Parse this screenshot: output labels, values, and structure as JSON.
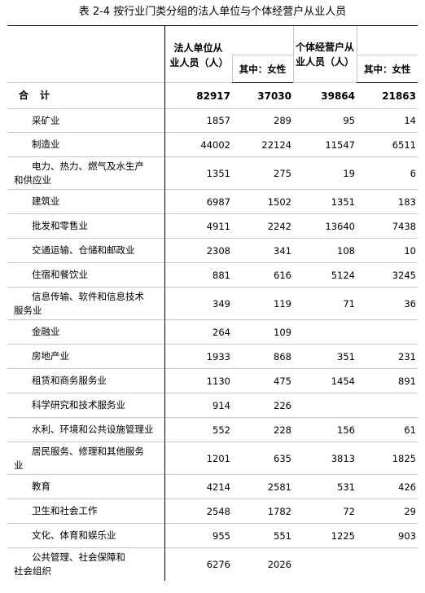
{
  "title": "表 2-4   按行业门类分组的法人单位与个体经营户从业人员",
  "headers": {
    "legal_unit": "法人单位从业人员（人）",
    "legal_female": "其中：女性",
    "individual": "个体经营户从业人员（人）",
    "individual_female": "其中：女性"
  },
  "total": {
    "label": "合计",
    "legal": "82917",
    "legal_female": "37030",
    "individual": "39864",
    "individual_female": "21863"
  },
  "rows": [
    {
      "label": "采矿业",
      "legal": "1857",
      "legal_female": "289",
      "individual": "95",
      "individual_female": "14"
    },
    {
      "label": "制造业",
      "legal": "44002",
      "legal_female": "22124",
      "individual": "11547",
      "individual_female": "6511"
    },
    {
      "label_a": "电力、热力、燃气及水生产",
      "label_b": "和供应业",
      "legal": "1351",
      "legal_female": "275",
      "individual": "19",
      "individual_female": "6"
    },
    {
      "label": "建筑业",
      "legal": "6987",
      "legal_female": "1502",
      "individual": "1351",
      "individual_female": "183"
    },
    {
      "label": "批发和零售业",
      "legal": "4911",
      "legal_female": "2242",
      "individual": "13640",
      "individual_female": "7438"
    },
    {
      "label": "交通运输、仓储和邮政业",
      "legal": "2308",
      "legal_female": "341",
      "individual": "108",
      "individual_female": "10"
    },
    {
      "label": "住宿和餐饮业",
      "legal": "881",
      "legal_female": "616",
      "individual": "5124",
      "individual_female": "3245"
    },
    {
      "label_a": "信息传输、软件和信息技术",
      "label_b": "服务业",
      "legal": "349",
      "legal_female": "119",
      "individual": "71",
      "individual_female": "36"
    },
    {
      "label": "金融业",
      "legal": "264",
      "legal_female": "109",
      "individual": "",
      "individual_female": ""
    },
    {
      "label": "房地产业",
      "legal": "1933",
      "legal_female": "868",
      "individual": "351",
      "individual_female": "231"
    },
    {
      "label": "租赁和商务服务业",
      "legal": "1130",
      "legal_female": "475",
      "individual": "1454",
      "individual_female": "891"
    },
    {
      "label": "科学研究和技术服务业",
      "legal": "914",
      "legal_female": "226",
      "individual": "",
      "individual_female": ""
    },
    {
      "label": "水利、环境和公共设施管理业",
      "legal": "552",
      "legal_female": "228",
      "individual": "156",
      "individual_female": "61"
    },
    {
      "label_a": "居民服务、修理和其他服务",
      "label_b": "业",
      "legal": "1201",
      "legal_female": "635",
      "individual": "3813",
      "individual_female": "1825"
    },
    {
      "label": "教育",
      "legal": "4214",
      "legal_female": "2581",
      "individual": "531",
      "individual_female": "426"
    },
    {
      "label": "卫生和社会工作",
      "legal": "2548",
      "legal_female": "1782",
      "individual": "72",
      "individual_female": "29"
    },
    {
      "label": "文化、体育和娱乐业",
      "legal": "955",
      "legal_female": "551",
      "individual": "1225",
      "individual_female": "903"
    },
    {
      "label_a": "公共管理、社会保障和",
      "label_b": "社会组织",
      "legal": "6276",
      "legal_female": "2026",
      "individual": "",
      "individual_female": ""
    }
  ]
}
